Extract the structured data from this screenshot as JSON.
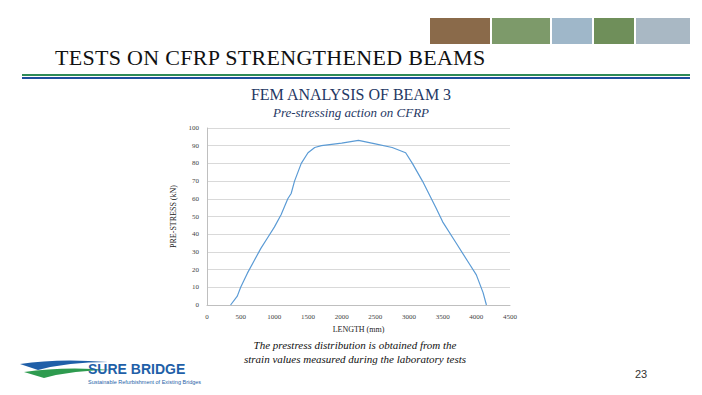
{
  "slide": {
    "heading": "TESTS ON CFRP STRENGTHENED BEAMS",
    "caption": [
      "The prestress distribution is obtained from the",
      "strain values measured during the laboratory tests"
    ],
    "logo": "SURE BRIDGE",
    "logo_tagline": "Sustainable Refurbishment of Existing Bridges",
    "page": "23"
  },
  "chart_data": {
    "type": "line",
    "title": "FEM ANALYSIS OF BEAM 3",
    "subtitle": "Pre-stressing action on CFRP",
    "x_label": "LENGTH (mm)",
    "y_label": "PRE-STRESS (kN)",
    "x": [
      350,
      450,
      500,
      600,
      700,
      800,
      900,
      1000,
      1100,
      1200,
      1250,
      1300,
      1400,
      1500,
      1600,
      1700,
      2000,
      2250,
      2500,
      2750,
      2950,
      3050,
      3200,
      3400,
      3500,
      3700,
      3900,
      4000,
      4100,
      4150
    ],
    "values": [
      0,
      5,
      10,
      18,
      25,
      32,
      38,
      44,
      51,
      60,
      63,
      70,
      80,
      86,
      89,
      90,
      91.5,
      93,
      91,
      89,
      86,
      80,
      70,
      55,
      47,
      35,
      23,
      17,
      7,
      0
    ],
    "color": "#5b9bd5",
    "xlim": [
      0,
      4500
    ],
    "xticks": [
      0,
      500,
      1000,
      1500,
      2000,
      2500,
      3000,
      3500,
      4000,
      4500
    ],
    "ylim": [
      0,
      100
    ],
    "yticks": [
      0,
      10,
      20,
      30,
      40,
      50,
      60,
      70,
      80,
      90,
      100
    ],
    "grid": true
  }
}
